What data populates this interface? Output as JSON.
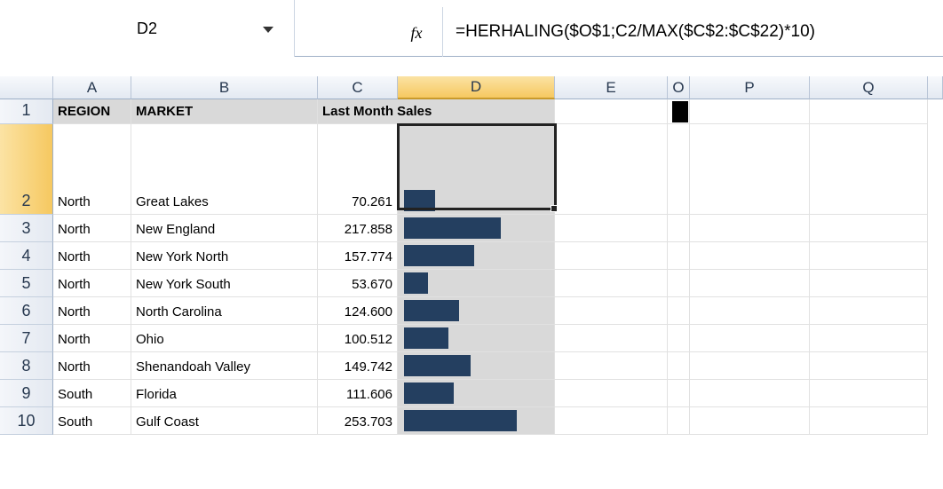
{
  "formula_bar": {
    "name_box": "D2",
    "fx": "fx",
    "formula": "=HERHALING($O$1;C2/MAX($C$2:$C$22)*10)"
  },
  "columns": [
    "A",
    "B",
    "C",
    "D",
    "E",
    "O",
    "P",
    "Q"
  ],
  "header_row": {
    "number": 1,
    "region": "REGION",
    "market": "MARKET",
    "sales": "Last Month Sales"
  },
  "rows": [
    {
      "number": 2,
      "region": "North",
      "market": "Great Lakes",
      "sales": "70.261"
    },
    {
      "number": 3,
      "region": "North",
      "market": "New England",
      "sales": "217.858"
    },
    {
      "number": 4,
      "region": "North",
      "market": "New York North",
      "sales": "157.774"
    },
    {
      "number": 5,
      "region": "North",
      "market": "New York South",
      "sales": "53.670"
    },
    {
      "number": 6,
      "region": "North",
      "market": "North Carolina",
      "sales": "124.600"
    },
    {
      "number": 7,
      "region": "North",
      "market": "Ohio",
      "sales": "100.512"
    },
    {
      "number": 8,
      "region": "North",
      "market": "Shenandoah Valley",
      "sales": "149.742"
    },
    {
      "number": 9,
      "region": "South",
      "market": "Florida",
      "sales": "111.606"
    },
    {
      "number": 10,
      "region": "South",
      "market": "Gulf Coast",
      "sales": "253.703"
    }
  ]
}
